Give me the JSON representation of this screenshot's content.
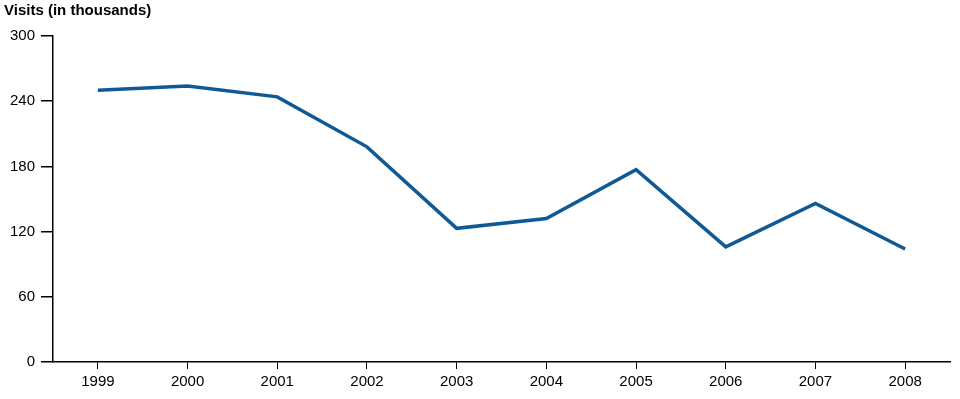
{
  "chart_data": {
    "type": "line",
    "y_label": "Visits (in thousands)",
    "categories": [
      "1999",
      "2000",
      "2001",
      "2002",
      "2003",
      "2004",
      "2005",
      "2006",
      "2007",
      "2008"
    ],
    "values": [
      250,
      254,
      244,
      198,
      123,
      132,
      177,
      106,
      146,
      104
    ],
    "color": "#0f5a96",
    "ylim": [
      0,
      300
    ],
    "yticks": [
      0,
      60,
      120,
      180,
      240,
      300
    ],
    "grid": false
  }
}
